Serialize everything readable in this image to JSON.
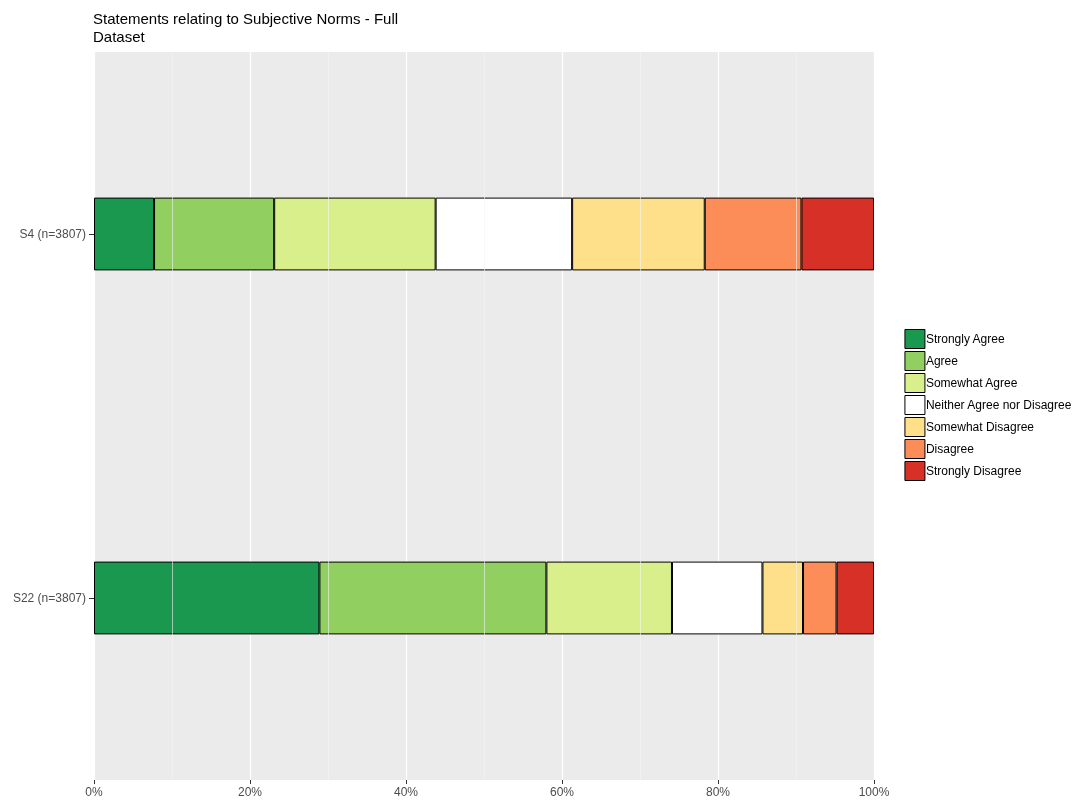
{
  "chart_data": {
    "type": "bar",
    "orientation": "horizontal",
    "stacked": true,
    "title": "Statements relating to Subjective Norms - Full Dataset",
    "categories": [
      "S4 (n=3807)",
      "S22 (n=3807)"
    ],
    "series": [
      {
        "name": "Strongly Agree",
        "color": "#1a9850",
        "values": [
          7.7,
          28.9
        ]
      },
      {
        "name": "Agree",
        "color": "#91cf60",
        "values": [
          15.4,
          29.1
        ]
      },
      {
        "name": "Somewhat Agree",
        "color": "#d9ef8b",
        "values": [
          20.7,
          16.1
        ]
      },
      {
        "name": "Neither Agree nor Disagree",
        "color": "#ffffff",
        "values": [
          17.5,
          11.6
        ]
      },
      {
        "name": "Somewhat Disagree",
        "color": "#fee08b",
        "values": [
          17.0,
          5.2
        ]
      },
      {
        "name": "Disagree",
        "color": "#fc8d59",
        "values": [
          12.4,
          4.3
        ]
      },
      {
        "name": "Strongly Disagree",
        "color": "#d73027",
        "values": [
          9.3,
          4.8
        ]
      }
    ],
    "xlim": [
      0,
      100
    ],
    "xticks": [
      {
        "value": 0,
        "label": "0%"
      },
      {
        "value": 20,
        "label": "20%"
      },
      {
        "value": 40,
        "label": "40%"
      },
      {
        "value": 60,
        "label": "60%"
      },
      {
        "value": 80,
        "label": "80%"
      },
      {
        "value": 100,
        "label": "100%"
      }
    ],
    "grid": "x",
    "legend": "right"
  }
}
